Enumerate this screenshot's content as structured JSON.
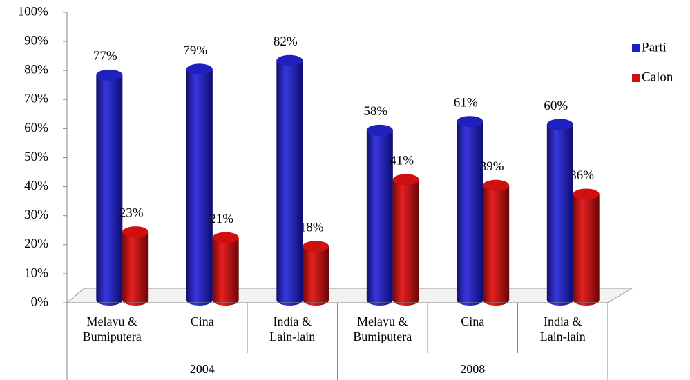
{
  "chart_data": {
    "type": "bar",
    "categories": [
      "Melayu &\nBumiputera",
      "Cina",
      "India &\nLain-lain",
      "Melayu &\nBumiputera",
      "Cina",
      "India &\nLain-lain"
    ],
    "groups": [
      {
        "label": "2004",
        "size": 3
      },
      {
        "label": "2008",
        "size": 3
      }
    ],
    "series": [
      {
        "name": "Parti",
        "color": "#2020c0",
        "values": [
          77,
          79,
          82,
          58,
          61,
          60
        ],
        "value_labels": [
          "77%",
          "79%",
          "82%",
          "58%",
          "61%",
          "60%"
        ]
      },
      {
        "name": "Calon",
        "color": "#d01010",
        "values": [
          23,
          21,
          18,
          41,
          39,
          36
        ],
        "value_labels": [
          "23%",
          "21%",
          "18%",
          "41%",
          "39%",
          "36%"
        ]
      }
    ],
    "ylim": [
      0,
      100
    ],
    "yticks": [
      {
        "value": 0,
        "label": "0%"
      },
      {
        "value": 10,
        "label": "10%"
      },
      {
        "value": 20,
        "label": "20%"
      },
      {
        "value": 30,
        "label": "30%"
      },
      {
        "value": 40,
        "label": "40%"
      },
      {
        "value": 50,
        "label": "50%"
      },
      {
        "value": 60,
        "label": "60%"
      },
      {
        "value": 70,
        "label": "70%"
      },
      {
        "value": 80,
        "label": "80%"
      },
      {
        "value": 90,
        "label": "90%"
      },
      {
        "value": 100,
        "label": "100%"
      }
    ],
    "legend": "right"
  }
}
